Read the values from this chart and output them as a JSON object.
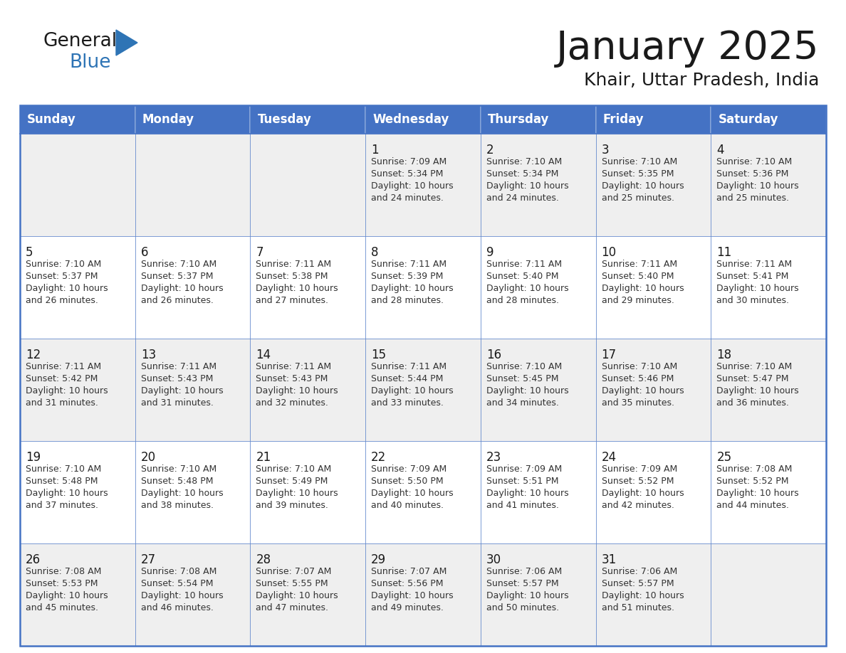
{
  "title": "January 2025",
  "subtitle": "Khair, Uttar Pradesh, India",
  "days_of_week": [
    "Sunday",
    "Monday",
    "Tuesday",
    "Wednesday",
    "Thursday",
    "Friday",
    "Saturday"
  ],
  "header_bg": "#4472C4",
  "header_text": "#FFFFFF",
  "row_bg_odd": "#EFEFEF",
  "row_bg_even": "#FFFFFF",
  "border_color": "#4472C4",
  "title_color": "#1a1a1a",
  "subtitle_color": "#1a1a1a",
  "day_num_color": "#1a1a1a",
  "cell_text_color": "#333333",
  "logo_black": "#1a1a1a",
  "logo_blue": "#2e74b5",
  "calendar": [
    [
      {
        "day": null,
        "info": null
      },
      {
        "day": null,
        "info": null
      },
      {
        "day": null,
        "info": null
      },
      {
        "day": "1",
        "info": "Sunrise: 7:09 AM\nSunset: 5:34 PM\nDaylight: 10 hours\nand 24 minutes."
      },
      {
        "day": "2",
        "info": "Sunrise: 7:10 AM\nSunset: 5:34 PM\nDaylight: 10 hours\nand 24 minutes."
      },
      {
        "day": "3",
        "info": "Sunrise: 7:10 AM\nSunset: 5:35 PM\nDaylight: 10 hours\nand 25 minutes."
      },
      {
        "day": "4",
        "info": "Sunrise: 7:10 AM\nSunset: 5:36 PM\nDaylight: 10 hours\nand 25 minutes."
      }
    ],
    [
      {
        "day": "5",
        "info": "Sunrise: 7:10 AM\nSunset: 5:37 PM\nDaylight: 10 hours\nand 26 minutes."
      },
      {
        "day": "6",
        "info": "Sunrise: 7:10 AM\nSunset: 5:37 PM\nDaylight: 10 hours\nand 26 minutes."
      },
      {
        "day": "7",
        "info": "Sunrise: 7:11 AM\nSunset: 5:38 PM\nDaylight: 10 hours\nand 27 minutes."
      },
      {
        "day": "8",
        "info": "Sunrise: 7:11 AM\nSunset: 5:39 PM\nDaylight: 10 hours\nand 28 minutes."
      },
      {
        "day": "9",
        "info": "Sunrise: 7:11 AM\nSunset: 5:40 PM\nDaylight: 10 hours\nand 28 minutes."
      },
      {
        "day": "10",
        "info": "Sunrise: 7:11 AM\nSunset: 5:40 PM\nDaylight: 10 hours\nand 29 minutes."
      },
      {
        "day": "11",
        "info": "Sunrise: 7:11 AM\nSunset: 5:41 PM\nDaylight: 10 hours\nand 30 minutes."
      }
    ],
    [
      {
        "day": "12",
        "info": "Sunrise: 7:11 AM\nSunset: 5:42 PM\nDaylight: 10 hours\nand 31 minutes."
      },
      {
        "day": "13",
        "info": "Sunrise: 7:11 AM\nSunset: 5:43 PM\nDaylight: 10 hours\nand 31 minutes."
      },
      {
        "day": "14",
        "info": "Sunrise: 7:11 AM\nSunset: 5:43 PM\nDaylight: 10 hours\nand 32 minutes."
      },
      {
        "day": "15",
        "info": "Sunrise: 7:11 AM\nSunset: 5:44 PM\nDaylight: 10 hours\nand 33 minutes."
      },
      {
        "day": "16",
        "info": "Sunrise: 7:10 AM\nSunset: 5:45 PM\nDaylight: 10 hours\nand 34 minutes."
      },
      {
        "day": "17",
        "info": "Sunrise: 7:10 AM\nSunset: 5:46 PM\nDaylight: 10 hours\nand 35 minutes."
      },
      {
        "day": "18",
        "info": "Sunrise: 7:10 AM\nSunset: 5:47 PM\nDaylight: 10 hours\nand 36 minutes."
      }
    ],
    [
      {
        "day": "19",
        "info": "Sunrise: 7:10 AM\nSunset: 5:48 PM\nDaylight: 10 hours\nand 37 minutes."
      },
      {
        "day": "20",
        "info": "Sunrise: 7:10 AM\nSunset: 5:48 PM\nDaylight: 10 hours\nand 38 minutes."
      },
      {
        "day": "21",
        "info": "Sunrise: 7:10 AM\nSunset: 5:49 PM\nDaylight: 10 hours\nand 39 minutes."
      },
      {
        "day": "22",
        "info": "Sunrise: 7:09 AM\nSunset: 5:50 PM\nDaylight: 10 hours\nand 40 minutes."
      },
      {
        "day": "23",
        "info": "Sunrise: 7:09 AM\nSunset: 5:51 PM\nDaylight: 10 hours\nand 41 minutes."
      },
      {
        "day": "24",
        "info": "Sunrise: 7:09 AM\nSunset: 5:52 PM\nDaylight: 10 hours\nand 42 minutes."
      },
      {
        "day": "25",
        "info": "Sunrise: 7:08 AM\nSunset: 5:52 PM\nDaylight: 10 hours\nand 44 minutes."
      }
    ],
    [
      {
        "day": "26",
        "info": "Sunrise: 7:08 AM\nSunset: 5:53 PM\nDaylight: 10 hours\nand 45 minutes."
      },
      {
        "day": "27",
        "info": "Sunrise: 7:08 AM\nSunset: 5:54 PM\nDaylight: 10 hours\nand 46 minutes."
      },
      {
        "day": "28",
        "info": "Sunrise: 7:07 AM\nSunset: 5:55 PM\nDaylight: 10 hours\nand 47 minutes."
      },
      {
        "day": "29",
        "info": "Sunrise: 7:07 AM\nSunset: 5:56 PM\nDaylight: 10 hours\nand 49 minutes."
      },
      {
        "day": "30",
        "info": "Sunrise: 7:06 AM\nSunset: 5:57 PM\nDaylight: 10 hours\nand 50 minutes."
      },
      {
        "day": "31",
        "info": "Sunrise: 7:06 AM\nSunset: 5:57 PM\nDaylight: 10 hours\nand 51 minutes."
      },
      {
        "day": null,
        "info": null
      }
    ]
  ]
}
